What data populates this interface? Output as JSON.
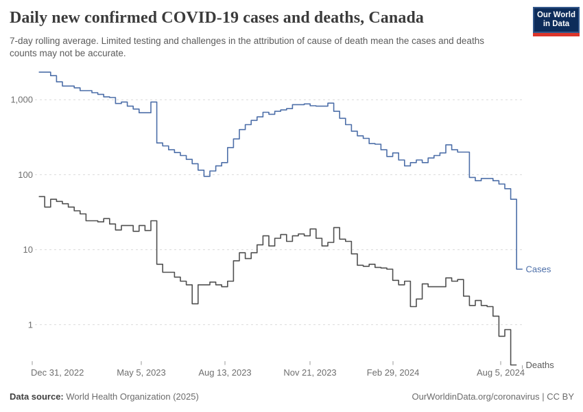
{
  "header": {
    "title": "Daily new confirmed COVID-19 cases and deaths, Canada",
    "subtitle": "7-day rolling average. Limited testing and challenges in the attribution of cause of death mean the cases and deaths counts may not be accurate.",
    "logo": {
      "line1": "Our World",
      "line2": "in Data"
    }
  },
  "footer": {
    "source_label": "Data source:",
    "source_value": " World Health Organization (2025)",
    "attribution": "OurWorldinData.org/coronavirus | CC BY"
  },
  "chart_data": {
    "type": "line",
    "title": "Daily new confirmed COVID-19 cases and deaths, Canada",
    "y_scale": "log",
    "grid": "horizontal-dashed",
    "legend_position": "end-of-line-labels",
    "x_start_date": "Jan 8, 2023",
    "x_step_days": 7,
    "x_tick_labels": [
      "Dec 31, 2022",
      "May 5, 2023",
      "Aug 13, 2023",
      "Nov 21, 2023",
      "Feb 29, 2024",
      "Aug 5, 2024"
    ],
    "y_ticks": [
      {
        "value": 1000,
        "label": "1,000"
      },
      {
        "value": 100,
        "label": "100"
      },
      {
        "value": 10,
        "label": "10"
      },
      {
        "value": 1,
        "label": "1"
      }
    ],
    "ylim": [
      0.25,
      3000
    ],
    "series": [
      {
        "name": "Cases",
        "color": "#4c6ea8",
        "label_color": "#4c6ea8",
        "leader_tick": false,
        "values": [
          2330,
          2330,
          2090,
          1730,
          1520,
          1520,
          1440,
          1320,
          1320,
          1240,
          1180,
          1090,
          1070,
          890,
          930,
          820,
          750,
          670,
          670,
          930,
          265,
          242,
          215,
          197,
          180,
          160,
          140,
          115,
          95,
          112,
          131,
          145,
          230,
          300,
          400,
          465,
          530,
          590,
          680,
          640,
          700,
          730,
          760,
          860,
          860,
          880,
          830,
          820,
          820,
          900,
          700,
          565,
          465,
          380,
          330,
          305,
          260,
          255,
          215,
          175,
          195,
          157,
          131,
          145,
          157,
          145,
          167,
          180,
          195,
          250,
          215,
          200,
          200,
          92,
          83,
          89,
          89,
          83,
          75,
          65,
          47,
          5.5
        ]
      },
      {
        "name": "Deaths",
        "color": "#4f4f4f",
        "label_color": "#5a5a5a",
        "leader_tick": true,
        "values": [
          51,
          37,
          47,
          44,
          41,
          37,
          33,
          30,
          24.3,
          24.3,
          23.5,
          26,
          22,
          18.3,
          21,
          21,
          17.6,
          21,
          18,
          24.3,
          6.4,
          5,
          5,
          4.3,
          3.8,
          3.4,
          1.9,
          3.4,
          3.4,
          3.7,
          3.4,
          3.2,
          3.8,
          7.1,
          9.1,
          7.6,
          9.1,
          11.6,
          15.3,
          11.2,
          14.2,
          15.9,
          12.9,
          15.3,
          16.2,
          15.3,
          18.9,
          14.2,
          11.2,
          12.5,
          19.7,
          13.8,
          12.9,
          8.8,
          6.2,
          6,
          6.4,
          5.8,
          5.7,
          5.5,
          3.9,
          3.4,
          3.8,
          1.74,
          2.2,
          3.5,
          3.2,
          3.2,
          3.2,
          4.2,
          3.8,
          4,
          2.4,
          1.8,
          2.1,
          1.8,
          1.74,
          1.3,
          0.7,
          0.86,
          0.29
        ]
      }
    ]
  }
}
